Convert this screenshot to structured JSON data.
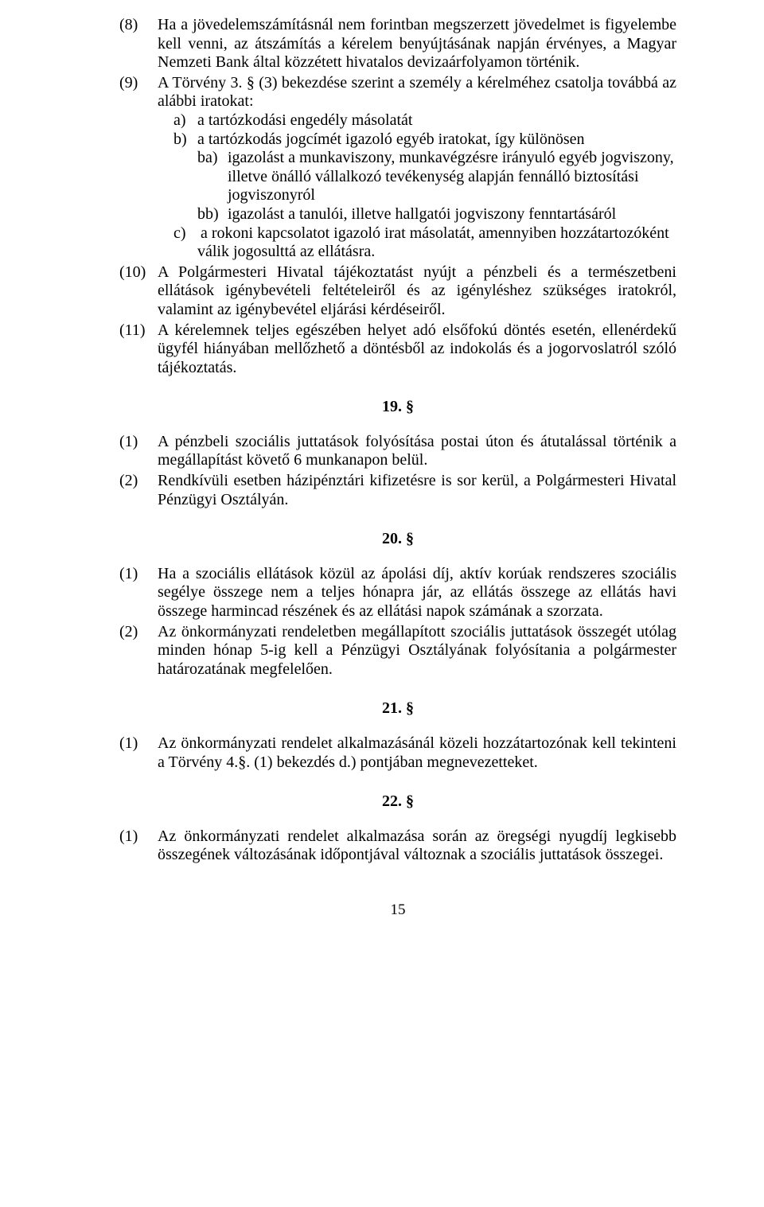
{
  "items": {
    "i8": {
      "num": "(8)",
      "text": "Ha a jövedelemszámításnál nem forintban megszerzett jövedelmet is figyelembe kell venni, az átszámítás a kérelem benyújtásának napján érvényes, a Magyar Nemzeti Bank által közzétett hivatalos devizaárfolyamon történik."
    },
    "i9": {
      "num": "(9)",
      "intro": "A Törvény 3. § (3) bekezdése szerint a személy a kérelméhez csatolja továbbá az alábbi iratokat:",
      "a_label": "a)",
      "a_text": "a tartózkodási engedély másolatát",
      "b_label": "b)",
      "b_text": "a tartózkodás jogcímét igazoló egyéb iratokat, így különösen",
      "ba_label": "ba)",
      "ba_text": "igazolást a munkaviszony, munkavégzésre irányuló egyéb jogviszony, illetve önálló vállalkozó tevékenység alapján fennálló biztosítási jogviszonyról",
      "bb_label": "bb)",
      "bb_text": "igazolást a tanulói, illetve hallgatói jogviszony fenntartásáról",
      "c_label": "c)",
      "c_text": "a rokoni kapcsolatot igazoló irat másolatát, amennyiben hozzátartozóként",
      "c_cont": "válik jogosulttá az ellátásra."
    },
    "i10": {
      "num": "(10)",
      "text": "A Polgármesteri Hivatal tájékoztatást nyújt a pénzbeli és a természetbeni ellátások igénybevételi feltételeiről és az igényléshez szükséges iratokról, valamint az igénybevétel eljárási kérdéseiről."
    },
    "i11": {
      "num": "(11)",
      "text": "A kérelemnek teljes egészében helyet adó elsőfokú döntés esetén, ellenérdekű ügyfél hiányában mellőzhető a döntésből az indokolás és a jogorvoslatról szóló tájékoztatás."
    }
  },
  "sections": {
    "s19": "19. §",
    "s20": "20. §",
    "s21": "21. §",
    "s22": "22. §"
  },
  "s19_items": {
    "p1": {
      "num": "(1)",
      "text": "A pénzbeli szociális juttatások folyósítása postai úton és átutalással történik a megállapítást követő 6 munkanapon belül."
    },
    "p2": {
      "num": "(2)",
      "text": "Rendkívüli esetben házipénztári kifizetésre is sor kerül, a Polgármesteri Hivatal Pénzügyi Osztályán."
    }
  },
  "s20_items": {
    "p1": {
      "num": "(1)",
      "text": "Ha a szociális ellátások közül az ápolási díj, aktív korúak rendszeres szociális segélye összege nem a teljes hónapra jár, az ellátás összege az ellátás havi összege harmincad részének és az ellátási napok számának a szorzata."
    },
    "p2": {
      "num": "(2)",
      "text": "Az önkormányzati rendeletben megállapított szociális juttatások összegét utólag minden hónap 5-ig kell a Pénzügyi Osztályának folyósítania a polgármester határozatának megfelelően."
    }
  },
  "s21_items": {
    "p1": {
      "num": "(1)",
      "text": "Az önkormányzati rendelet alkalmazásánál közeli hozzátartozónak kell tekinteni a Törvény 4.§. (1) bekezdés d.) pontjában megnevezetteket."
    }
  },
  "s22_items": {
    "p1": {
      "num": "(1)",
      "text": "Az önkormányzati rendelet alkalmazása során az öregségi nyugdíj legkisebb összegének változásának időpontjával változnak a szociális juttatások összegei."
    }
  },
  "page_number": "15"
}
